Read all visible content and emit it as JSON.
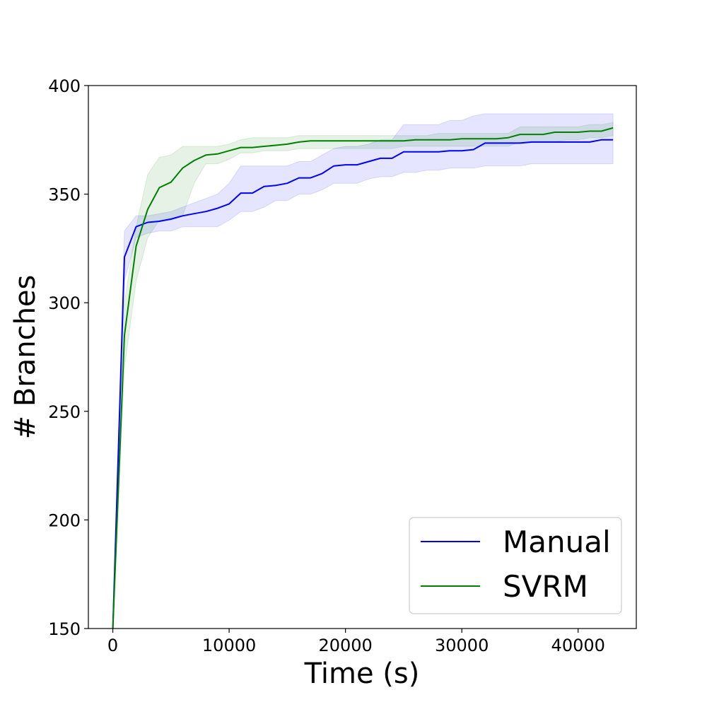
{
  "chart_data": {
    "type": "line",
    "title": "",
    "xlabel": "Time (s)",
    "ylabel": "# Branches",
    "xlim": [
      -2100,
      45000
    ],
    "ylim": [
      150,
      400
    ],
    "x_ticks": [
      0,
      10000,
      20000,
      30000,
      40000
    ],
    "y_ticks": [
      150,
      200,
      250,
      300,
      350,
      400
    ],
    "grid": false,
    "legend_position": "lower-right",
    "series": [
      {
        "name": "Manual",
        "color": "#0000ff",
        "band_color": "#0000ff",
        "x": [
          0,
          1000,
          2000,
          3000,
          4000,
          5000,
          6000,
          7000,
          8000,
          9000,
          10000,
          11000,
          12000,
          13000,
          14000,
          15000,
          16000,
          17000,
          18000,
          19000,
          20000,
          21000,
          22000,
          23000,
          24000,
          25000,
          26000,
          27000,
          28000,
          29000,
          30000,
          31000,
          32000,
          33000,
          34000,
          35000,
          36000,
          37000,
          38000,
          39000,
          40000,
          41000,
          42000,
          43000
        ],
        "y": [
          150,
          321,
          335,
          337,
          337.5,
          338.5,
          340,
          341,
          342,
          343.5,
          345.5,
          350.5,
          350.5,
          353.5,
          354,
          355,
          357.5,
          357.5,
          359.5,
          363,
          363.5,
          363.5,
          365,
          366.5,
          366.5,
          369.5,
          369.5,
          369.5,
          369.5,
          370,
          370,
          370.5,
          373.5,
          373.5,
          373.5,
          373.5,
          374,
          374,
          374,
          374,
          374,
          374,
          375,
          375
        ],
        "lower": [
          150,
          310,
          330,
          332,
          333,
          333,
          335,
          335,
          335,
          335,
          338,
          342,
          342,
          344,
          347,
          347,
          350,
          350,
          352,
          355,
          355,
          355,
          357,
          358,
          358,
          360,
          360,
          361,
          361,
          362,
          362,
          362,
          363,
          363,
          363,
          363,
          364,
          364,
          364,
          364,
          364,
          364,
          364,
          364
        ],
        "upper": [
          150,
          333,
          340,
          340,
          341,
          342,
          344,
          346,
          348,
          350,
          355,
          363,
          363,
          363,
          363,
          363,
          365,
          365,
          368,
          371,
          372,
          372,
          373,
          375,
          375,
          382,
          382,
          382,
          382,
          384,
          384,
          386,
          387,
          387,
          387,
          387,
          387,
          387,
          387,
          387,
          387,
          387,
          387,
          387
        ]
      },
      {
        "name": "SVRM",
        "color": "#008000",
        "band_color": "#008000",
        "x": [
          0,
          1000,
          2000,
          3000,
          4000,
          5000,
          6000,
          7000,
          8000,
          9000,
          10000,
          11000,
          12000,
          13000,
          14000,
          15000,
          16000,
          17000,
          18000,
          19000,
          20000,
          21000,
          22000,
          23000,
          24000,
          25000,
          26000,
          27000,
          28000,
          29000,
          30000,
          31000,
          32000,
          33000,
          34000,
          35000,
          36000,
          37000,
          38000,
          39000,
          40000,
          41000,
          42000,
          43000
        ],
        "y": [
          150,
          285,
          326,
          343,
          353,
          355.5,
          362,
          365.5,
          368,
          368.5,
          370,
          371.5,
          371.5,
          372,
          372.5,
          373,
          374,
          374.5,
          374.5,
          374.5,
          374.5,
          374.5,
          374.5,
          374.5,
          374.5,
          374.5,
          375,
          375,
          375,
          375,
          375.5,
          375.5,
          375.5,
          375.5,
          376,
          377.5,
          377.5,
          377.5,
          378.5,
          378.5,
          378.5,
          379,
          379,
          380.5
        ],
        "lower": [
          150,
          270,
          310,
          330,
          338,
          338,
          340,
          355,
          364,
          364,
          366,
          369,
          369,
          370,
          370,
          370,
          371,
          371,
          371,
          371,
          371,
          371,
          371,
          371,
          371,
          372,
          372,
          372,
          372,
          372,
          372,
          372,
          372,
          372,
          372,
          374,
          374,
          374,
          374,
          375,
          375,
          376,
          376,
          377
        ],
        "upper": [
          150,
          300,
          335,
          359,
          367,
          368,
          372,
          372,
          372,
          372,
          373,
          375,
          376,
          376,
          376,
          376,
          377,
          377,
          377,
          377,
          377,
          377,
          377,
          377,
          377,
          377,
          377,
          377,
          378,
          378,
          378,
          378,
          378,
          378,
          378,
          381,
          381,
          381,
          381,
          381,
          381,
          382,
          382,
          383
        ]
      }
    ]
  }
}
